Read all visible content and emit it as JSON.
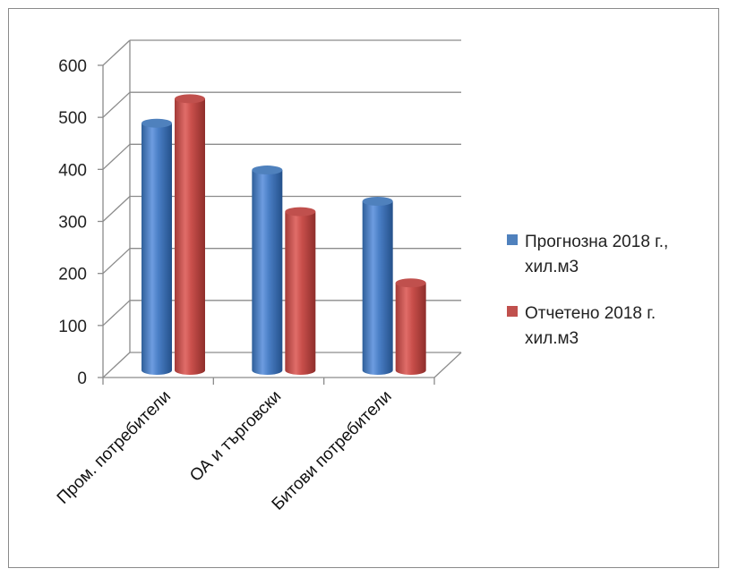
{
  "chart_data": {
    "type": "bar",
    "categories": [
      "Пром. потребители",
      "ОА и търговски",
      "Битови потребители"
    ],
    "series": [
      {
        "name": "Прогнозна 2018 г., хил.м3",
        "legend_lines": [
          "Прогнозна 2018 г.,",
          "хил.м3"
        ],
        "color": "#4f81bd",
        "values": [
          475,
          385,
          325
        ]
      },
      {
        "name": "Отчетено 2018 г. хил.м3",
        "legend_lines": [
          "Отчетено 2018 г.",
          "хил.м3"
        ],
        "color": "#c0504d",
        "values": [
          522,
          305,
          168
        ]
      }
    ],
    "ylim": [
      0,
      600
    ],
    "yticks": [
      0,
      100,
      200,
      300,
      400,
      500,
      600
    ],
    "grid": true,
    "legend_position": "right",
    "style": "3d-cylinder"
  }
}
